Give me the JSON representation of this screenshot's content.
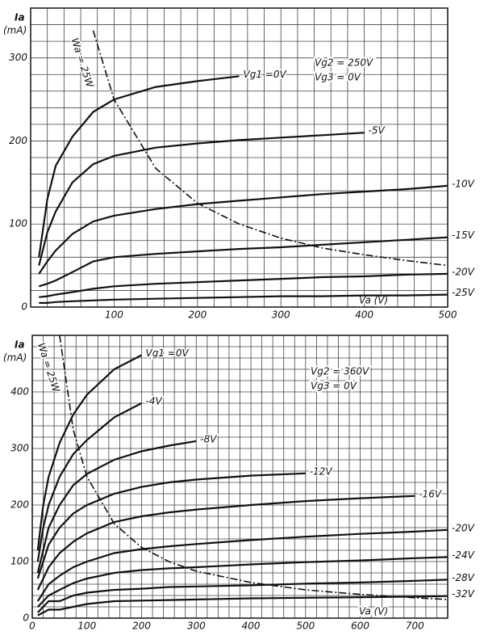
{
  "chart_data": [
    {
      "type": "line",
      "y_label": "Ia",
      "y_unit": "(mA)",
      "x_label": "Va (V)",
      "annotations": [
        "Vg2 = 250V",
        "Vg3 = 0V"
      ],
      "xlim": [
        0,
        500
      ],
      "ylim": [
        0,
        360
      ],
      "xticks": [
        100,
        200,
        300,
        400,
        500
      ],
      "yticks": [
        0,
        100,
        200,
        300
      ],
      "xgrid": [
        0,
        20,
        40,
        60,
        80,
        100,
        120,
        140,
        160,
        180,
        200,
        220,
        240,
        260,
        280,
        300,
        320,
        340,
        360,
        380,
        400,
        420,
        440,
        460,
        480,
        500
      ],
      "ygrid": [
        0,
        20,
        40,
        60,
        80,
        100,
        120,
        140,
        160,
        180,
        200,
        220,
        240,
        260,
        280,
        300,
        320,
        340,
        360
      ],
      "x": [
        10,
        20,
        30,
        50,
        75,
        100,
        150,
        200,
        250,
        300,
        350,
        400,
        450,
        500
      ],
      "series": [
        {
          "name": "Vg1 =0V",
          "color": "#111",
          "values": [
            60,
            130,
            170,
            205,
            235,
            250,
            265,
            272,
            278,
            null,
            null,
            null,
            null,
            null
          ]
        },
        {
          "name": "-5V",
          "color": "#111",
          "values": [
            50,
            90,
            115,
            150,
            172,
            182,
            192,
            197,
            201,
            204,
            207,
            210,
            null,
            null
          ]
        },
        {
          "name": "-10V",
          "color": "#111",
          "values": [
            40,
            55,
            68,
            88,
            103,
            110,
            118,
            124,
            128,
            132,
            136,
            139,
            142,
            146
          ]
        },
        {
          "name": "-15V",
          "color": "#111",
          "values": [
            25,
            28,
            32,
            42,
            55,
            60,
            64,
            67,
            70,
            72,
            75,
            78,
            81,
            84
          ]
        },
        {
          "name": "-20V",
          "color": "#111",
          "values": [
            12,
            13,
            15,
            18,
            22,
            25,
            28,
            30,
            32,
            34,
            36,
            37,
            39,
            40
          ]
        },
        {
          "name": "-25V",
          "color": "#111",
          "values": [
            5,
            5,
            6,
            7,
            8,
            9,
            10,
            11,
            12,
            13,
            13,
            14,
            14,
            15
          ]
        },
        {
          "name": "Wa = 25W",
          "color": "#111",
          "dash": true,
          "values": [
            null,
            null,
            null,
            null,
            333,
            250,
            167,
            125,
            100,
            83,
            71,
            63,
            56,
            50
          ]
        }
      ]
    },
    {
      "type": "line",
      "y_label": "Ia",
      "y_unit": "(mA)",
      "x_label": "Va (V)",
      "annotations": [
        "Vg2 = 360V",
        "Vg3 = 0V"
      ],
      "xlim": [
        0,
        760
      ],
      "ylim": [
        0,
        500
      ],
      "xticks": [
        0,
        100,
        200,
        300,
        400,
        500,
        600,
        700
      ],
      "yticks": [
        0,
        100,
        200,
        300,
        400
      ],
      "xgrid": [
        0,
        20,
        40,
        60,
        80,
        100,
        120,
        140,
        160,
        180,
        200,
        220,
        240,
        260,
        280,
        300,
        320,
        340,
        360,
        380,
        400,
        420,
        440,
        460,
        480,
        500,
        520,
        540,
        560,
        580,
        600,
        620,
        640,
        660,
        680,
        700,
        720,
        740,
        760
      ],
      "ygrid": [
        0,
        20,
        40,
        60,
        80,
        100,
        120,
        140,
        160,
        180,
        200,
        220,
        240,
        260,
        280,
        300,
        320,
        340,
        360,
        380,
        400,
        420,
        440,
        460,
        480,
        500
      ],
      "x": [
        10,
        20,
        30,
        50,
        75,
        100,
        150,
        200,
        250,
        300,
        400,
        500,
        600,
        700,
        760
      ],
      "series": [
        {
          "name": "Vg1 =0V",
          "color": "#111",
          "values": [
            120,
            200,
            250,
            310,
            360,
            395,
            440,
            465,
            null,
            null,
            null,
            null,
            null,
            null,
            null
          ]
        },
        {
          "name": "-4V",
          "color": "#111",
          "values": [
            100,
            160,
            200,
            250,
            290,
            315,
            355,
            380,
            null,
            null,
            null,
            null,
            null,
            null,
            null
          ]
        },
        {
          "name": "-8V",
          "color": "#111",
          "values": [
            80,
            120,
            160,
            200,
            235,
            255,
            280,
            295,
            305,
            313,
            null,
            null,
            null,
            null,
            null
          ]
        },
        {
          "name": "-12V",
          "color": "#111",
          "values": [
            70,
            100,
            130,
            160,
            185,
            200,
            220,
            232,
            240,
            245,
            252,
            256,
            null,
            null,
            null
          ]
        },
        {
          "name": "-16V",
          "color": "#111",
          "values": [
            50,
            70,
            90,
            115,
            135,
            150,
            170,
            180,
            187,
            192,
            200,
            207,
            212,
            216,
            null
          ]
        },
        {
          "name": "-20V",
          "color": "#111",
          "values": [
            30,
            45,
            60,
            75,
            90,
            100,
            115,
            122,
            127,
            131,
            138,
            144,
            149,
            153,
            156
          ]
        },
        {
          "name": "-24V",
          "color": "#111",
          "values": [
            20,
            30,
            40,
            50,
            62,
            70,
            80,
            85,
            88,
            90,
            95,
            99,
            102,
            106,
            108
          ]
        },
        {
          "name": "-28V",
          "color": "#111",
          "values": [
            10,
            20,
            30,
            30,
            40,
            45,
            50,
            52,
            55,
            56,
            58,
            61,
            63,
            66,
            68
          ]
        },
        {
          "name": "-32V",
          "color": "#111",
          "values": [
            5,
            10,
            15,
            15,
            20,
            25,
            30,
            31,
            32,
            33,
            35,
            36,
            37,
            38,
            39
          ]
        },
        {
          "name": "Wa = 25W",
          "color": "#111",
          "dash": true,
          "values": [
            null,
            null,
            null,
            500,
            333,
            250,
            167,
            125,
            100,
            83,
            63,
            50,
            42,
            36,
            33
          ]
        }
      ]
    }
  ]
}
